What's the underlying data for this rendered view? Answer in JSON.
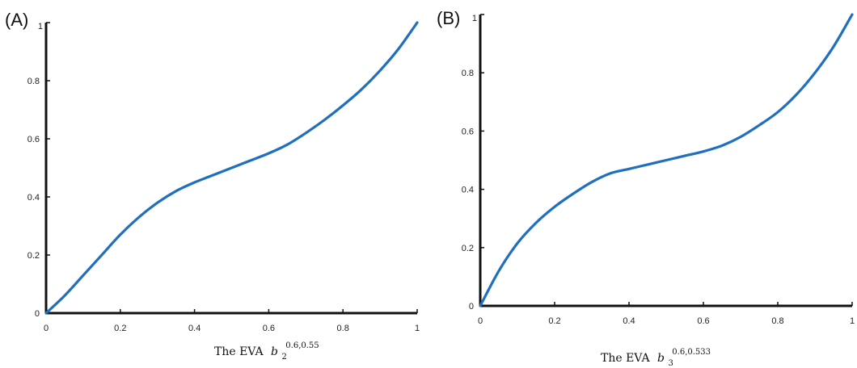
{
  "colors": {
    "series": "#1f6fbf",
    "axis": "#111111"
  },
  "chart_data": [
    {
      "type": "line",
      "panel_label": "(A)",
      "xlabel_prefix": "The EVA",
      "xlabel_base": "b",
      "xlabel_sub": "2",
      "xlabel_sup": "0.6,0.55",
      "xlim": [
        0,
        1
      ],
      "ylim": [
        0,
        1
      ],
      "xticks": [
        "0",
        "0.2",
        "0.4",
        "0.6",
        "0.8",
        "1"
      ],
      "yticks": [
        "0",
        "0.2",
        "0.4",
        "0.6",
        "0.8",
        "1"
      ],
      "grid": false,
      "series": [
        {
          "x": [
            0,
            0.05,
            0.1,
            0.15,
            0.2,
            0.25,
            0.3,
            0.35,
            0.4,
            0.45,
            0.5,
            0.55,
            0.6,
            0.65,
            0.7,
            0.75,
            0.8,
            0.85,
            0.9,
            0.95,
            1
          ],
          "y": [
            0,
            0.06,
            0.13,
            0.2,
            0.27,
            0.33,
            0.38,
            0.42,
            0.45,
            0.475,
            0.5,
            0.525,
            0.55,
            0.58,
            0.62,
            0.665,
            0.715,
            0.77,
            0.835,
            0.91,
            1
          ]
        }
      ]
    },
    {
      "type": "line",
      "panel_label": "(B)",
      "xlabel_prefix": "The EVA",
      "xlabel_base": "b",
      "xlabel_sub": "3",
      "xlabel_sup": "0.6,0.533",
      "xlim": [
        0,
        1
      ],
      "ylim": [
        0,
        1
      ],
      "xticks": [
        "0",
        "0.2",
        "0.4",
        "0.6",
        "0.8",
        "1"
      ],
      "yticks": [
        "0",
        "0.2",
        "0.4",
        "0.6",
        "0.8",
        "1"
      ],
      "grid": false,
      "series": [
        {
          "x": [
            0,
            0.05,
            0.1,
            0.15,
            0.2,
            0.25,
            0.3,
            0.35,
            0.4,
            0.45,
            0.5,
            0.55,
            0.6,
            0.65,
            0.7,
            0.75,
            0.8,
            0.85,
            0.9,
            0.95,
            1
          ],
          "y": [
            0,
            0.12,
            0.215,
            0.285,
            0.34,
            0.385,
            0.425,
            0.455,
            0.47,
            0.485,
            0.5,
            0.515,
            0.53,
            0.55,
            0.58,
            0.62,
            0.665,
            0.725,
            0.8,
            0.89,
            1
          ]
        }
      ]
    }
  ]
}
